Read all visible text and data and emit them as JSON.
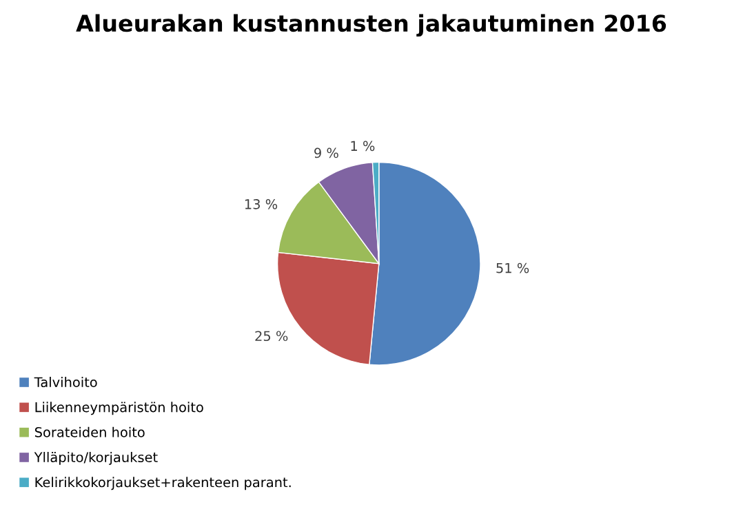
{
  "chart_data": {
    "type": "pie",
    "title": "Alueurakan kustannusten jakautuminen 2016",
    "categories": [
      "Talvihoito",
      "Liikenneympäristön hoito",
      "Sorateiden hoito",
      "Ylläpito/korjaukset",
      "Kelirikkokorjaukset+rakenteen parant."
    ],
    "values": [
      51,
      25,
      13,
      9,
      1
    ],
    "value_labels": [
      "51 %",
      "25 %",
      "13 %",
      "9 %",
      "1 %"
    ],
    "colors": [
      "#4f81bd",
      "#c0504d",
      "#9bbb59",
      "#8064a2",
      "#4bacc6"
    ],
    "legend": "bottom left"
  }
}
